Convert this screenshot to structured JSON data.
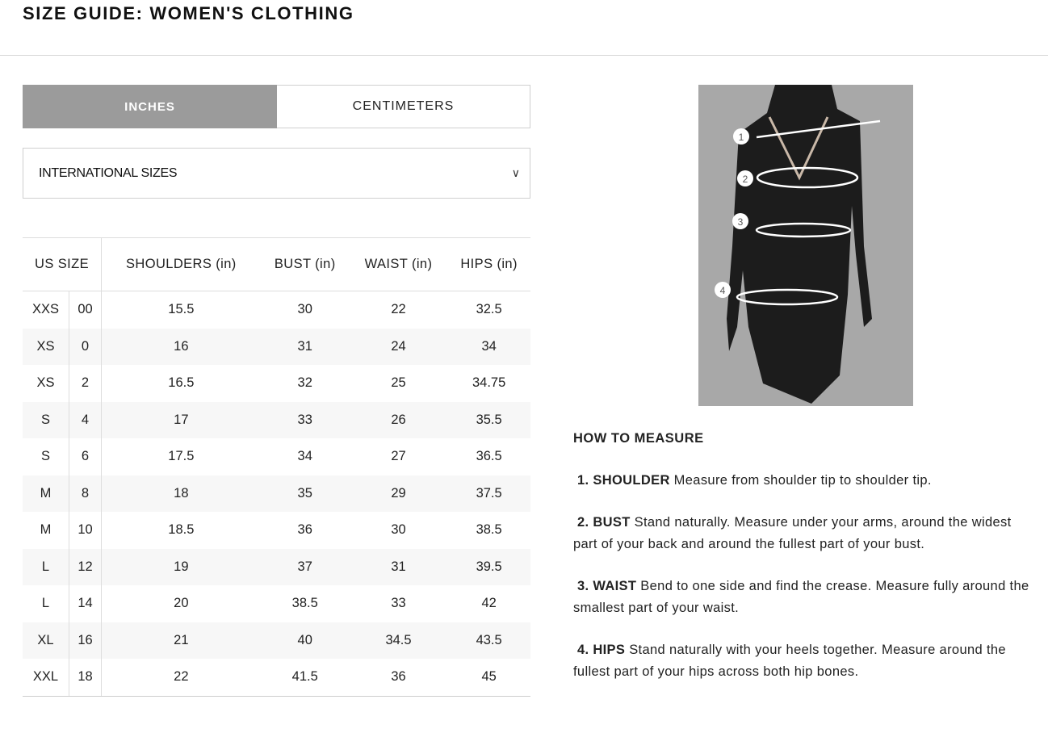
{
  "header": {
    "title": "SIZE GUIDE: WOMEN'S CLOTHING"
  },
  "units": {
    "inches": "INCHES",
    "centimeters": "CENTIMETERS",
    "selected": "INCHES"
  },
  "size_system": {
    "selected": "INTERNATIONAL SIZES",
    "icon": "chevron-down-icon"
  },
  "table": {
    "headers": [
      "US SIZE",
      "SHOULDERS (in)",
      "BUST (in)",
      "WAIST (in)",
      "HIPS (in)"
    ],
    "rows": [
      [
        "XXS",
        "00",
        "15.5",
        "30",
        "22",
        "32.5"
      ],
      [
        "XS",
        "0",
        "16",
        "31",
        "24",
        "34"
      ],
      [
        "XS",
        "2",
        "16.5",
        "32",
        "25",
        "34.75"
      ],
      [
        "S",
        "4",
        "17",
        "33",
        "26",
        "35.5"
      ],
      [
        "S",
        "6",
        "17.5",
        "34",
        "27",
        "36.5"
      ],
      [
        "M",
        "8",
        "18",
        "35",
        "29",
        "37.5"
      ],
      [
        "M",
        "10",
        "18.5",
        "36",
        "30",
        "38.5"
      ],
      [
        "L",
        "12",
        "19",
        "37",
        "31",
        "39.5"
      ],
      [
        "L",
        "14",
        "20",
        "38.5",
        "33",
        "42"
      ],
      [
        "XL",
        "16",
        "21",
        "40",
        "34.5",
        "43.5"
      ],
      [
        "XXL",
        "18",
        "22",
        "41.5",
        "36",
        "45"
      ]
    ]
  },
  "diagram": {
    "markers": [
      "1",
      "2",
      "3",
      "4"
    ]
  },
  "how_to": {
    "title": "HOW TO MEASURE",
    "steps": [
      {
        "label": "1. SHOULDER",
        "text": "Measure from shoulder tip to shoulder tip."
      },
      {
        "label": "2. BUST",
        "text": " Stand naturally. Measure under your arms, around the widest part of your back and around the fullest part of your bust."
      },
      {
        "label": "3. WAIST",
        "text": "Bend to one side and find the crease. Measure fully around the smallest part of your waist."
      },
      {
        "label": "4. HIPS",
        "text": "Stand naturally with your heels together. Measure around the fullest part of your hips across both hip bones."
      }
    ]
  }
}
